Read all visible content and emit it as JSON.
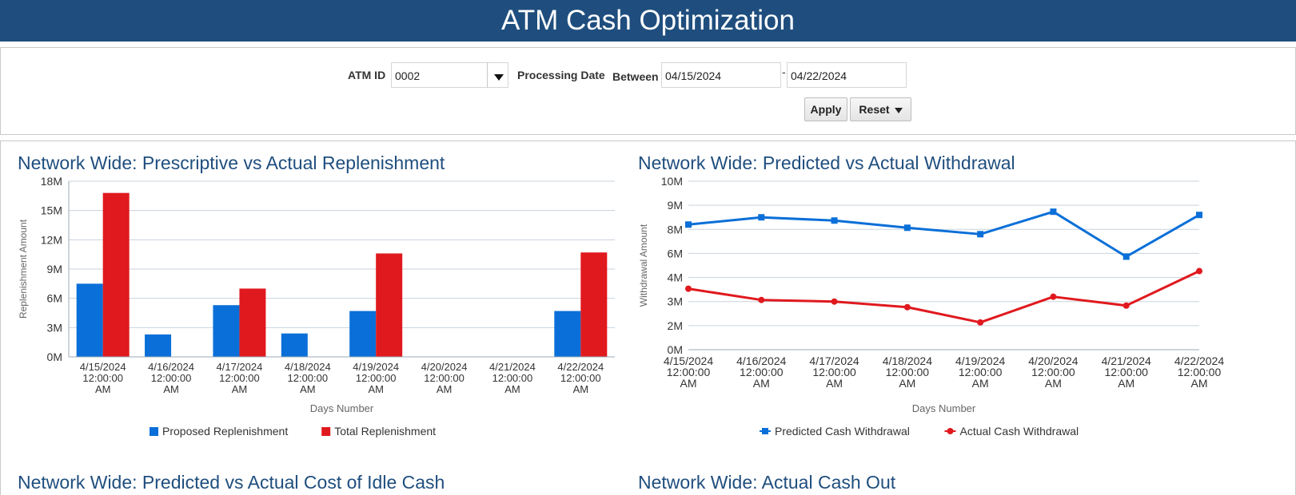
{
  "header": {
    "title": "ATM Cash Optimization"
  },
  "filters": {
    "atm_id_label": "ATM ID",
    "atm_id_value": "0002",
    "processing_date_label": "Processing Date",
    "between_label": "Between",
    "start_date": "04/15/2024",
    "range_separator": "-",
    "end_date": "04/22/2024",
    "apply_label": "Apply",
    "reset_label": "Reset"
  },
  "colors": {
    "header_bg": "#1f4e7e",
    "proposed": "#0a6fd8",
    "total": "#e0191e",
    "predicted": "#0a6fd8",
    "actual": "#e0191e"
  },
  "chart_data": [
    {
      "type": "bar",
      "title": "Network Wide: Prescriptive vs Actual Replenishment",
      "xlabel": "Days Number",
      "ylabel": "Replenishment Amount",
      "ylim": [
        0,
        18000000
      ],
      "y_ticks": [
        "0M",
        "3M",
        "6M",
        "9M",
        "12M",
        "15M",
        "18M"
      ],
      "categories": [
        [
          "4/15/2024",
          "12:00:00",
          "AM"
        ],
        [
          "4/16/2024",
          "12:00:00",
          "AM"
        ],
        [
          "4/17/2024",
          "12:00:00",
          "AM"
        ],
        [
          "4/18/2024",
          "12:00:00",
          "AM"
        ],
        [
          "4/19/2024",
          "12:00:00",
          "AM"
        ],
        [
          "4/20/2024",
          "12:00:00",
          "AM"
        ],
        [
          "4/21/2024",
          "12:00:00",
          "AM"
        ],
        [
          "4/22/2024",
          "12:00:00",
          "AM"
        ]
      ],
      "series": [
        {
          "name": "Proposed Replenishment",
          "color": "#0a6fd8",
          "values": [
            7500000,
            2300000,
            5300000,
            2400000,
            4700000,
            0,
            0,
            4700000
          ]
        },
        {
          "name": "Total Replenishment",
          "color": "#e0191e",
          "values": [
            16800000,
            0,
            7000000,
            0,
            10600000,
            0,
            0,
            10700000
          ]
        }
      ],
      "grid": true,
      "legend": "bottom-center"
    },
    {
      "type": "line",
      "title": "Network Wide: Predicted vs Actual Withdrawal",
      "xlabel": "Days Number",
      "ylabel": "Withdrawal Amount",
      "y_ticks": [
        "0M",
        "2M",
        "3M",
        "4M",
        "6M",
        "8M",
        "9M",
        "10M"
      ],
      "y_tick_values": [
        0,
        1500000,
        3000000,
        4500000,
        6000000,
        7500000,
        9000000,
        10500000
      ],
      "ylim": [
        0,
        10500000
      ],
      "categories": [
        [
          "4/15/2024",
          "12:00:00",
          "AM"
        ],
        [
          "4/16/2024",
          "12:00:00",
          "AM"
        ],
        [
          "4/17/2024",
          "12:00:00",
          "AM"
        ],
        [
          "4/18/2024",
          "12:00:00",
          "AM"
        ],
        [
          "4/19/2024",
          "12:00:00",
          "AM"
        ],
        [
          "4/20/2024",
          "12:00:00",
          "AM"
        ],
        [
          "4/21/2024",
          "12:00:00",
          "AM"
        ],
        [
          "4/22/2024",
          "12:00:00",
          "AM"
        ]
      ],
      "series": [
        {
          "name": "Predicted Cash Withdrawal",
          "color": "#0a6fd8",
          "marker": "square",
          "values": [
            7800000,
            8250000,
            8050000,
            7600000,
            7200000,
            8600000,
            5800000,
            8400000
          ]
        },
        {
          "name": "Actual Cash Withdrawal",
          "color": "#e0191e",
          "marker": "circle",
          "values": [
            3800000,
            3100000,
            3000000,
            2650000,
            1700000,
            3300000,
            2750000,
            4900000
          ]
        }
      ],
      "grid": true,
      "legend": "bottom-center"
    }
  ],
  "below_fold_titles": [
    "Network Wide: Predicted vs Actual Cost of Idle Cash",
    "Network Wide: Actual Cash Out"
  ]
}
